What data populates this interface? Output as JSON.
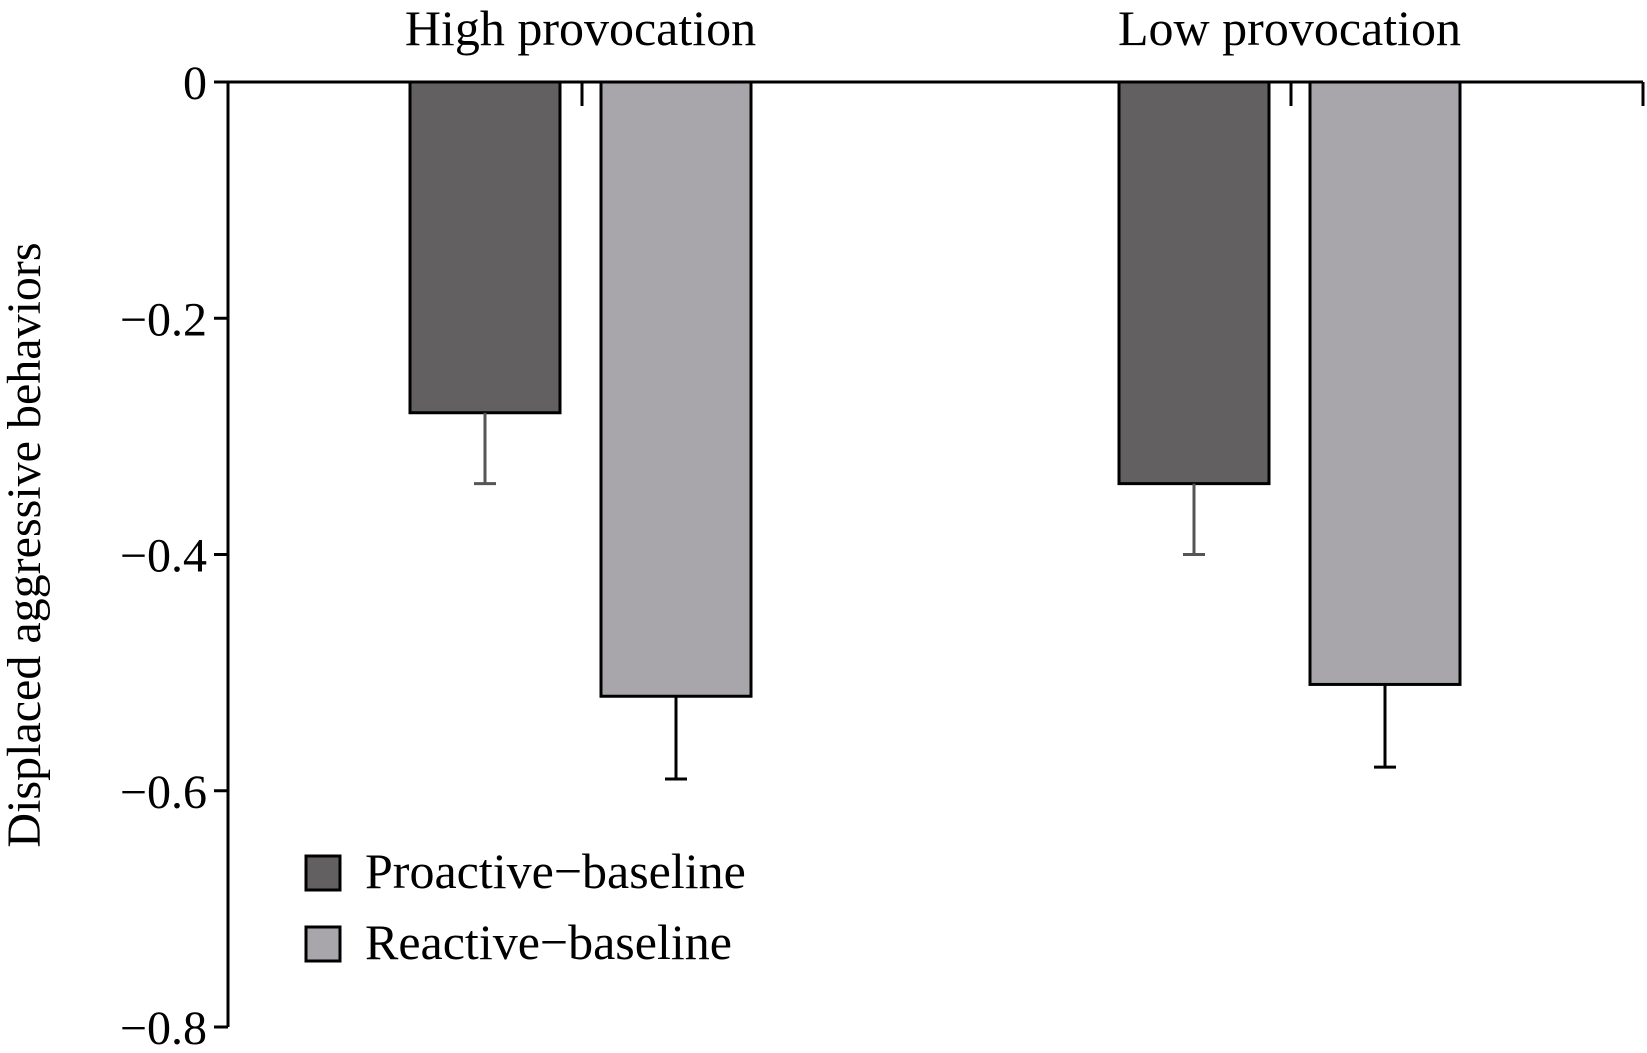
{
  "chart_data": {
    "type": "bar",
    "categories": [
      "High provocation",
      "Low provocation"
    ],
    "series": [
      {
        "name": "Proactive−baseline",
        "values": [
          -0.28,
          -0.34
        ],
        "errors": [
          0.06,
          0.06
        ],
        "color": "#636061"
      },
      {
        "name": "Reactive−baseline",
        "values": [
          -0.52,
          -0.51
        ],
        "errors": [
          0.07,
          0.07
        ],
        "color": "#a8a6aa"
      }
    ],
    "ylabel": "Displaced aggressive behaviors",
    "xlabel": "",
    "ylim": [
      -0.8,
      0
    ],
    "yticks": [
      0,
      -0.2,
      -0.4,
      -0.6,
      -0.8
    ],
    "ytick_labels": [
      "0",
      "−0.2",
      "−0.4",
      "−0.6",
      "−0.8"
    ],
    "category_labels_position": "top",
    "grid": false,
    "legend": "bottom-left"
  }
}
